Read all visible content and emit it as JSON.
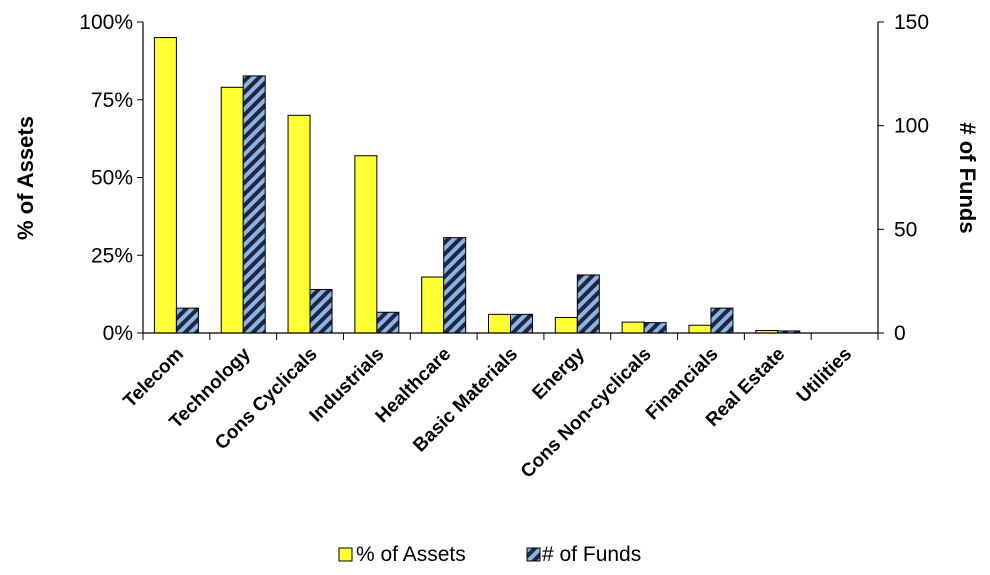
{
  "chart_data": {
    "type": "bar",
    "categories": [
      "Telecom",
      "Technology",
      "Cons Cyclicals",
      "Industrials",
      "Healthcare",
      "Basic Materials",
      "Energy",
      "Cons Non-cyclicals",
      "Financials",
      "Real Estate",
      "Utilities"
    ],
    "series": [
      {
        "name": "% of Assets",
        "axis": "left",
        "color": "#ffff33",
        "values": [
          95,
          79,
          70,
          57,
          18,
          6,
          5,
          3.5,
          2.5,
          0.8,
          0
        ]
      },
      {
        "name": "# of Funds",
        "axis": "right",
        "color": "#8db4e2",
        "pattern": "diagonal-stripes",
        "values": [
          12,
          124,
          21,
          10,
          46,
          9,
          28,
          5,
          12,
          1,
          0
        ]
      }
    ],
    "y_left": {
      "label": "% of Assets",
      "ylim": [
        0,
        100
      ],
      "ticks": [
        0,
        25,
        50,
        75,
        100
      ],
      "tick_labels": [
        "0%",
        "25%",
        "50%",
        "75%",
        "100%"
      ]
    },
    "y_right": {
      "label": "# of Funds",
      "ylim": [
        0,
        150
      ],
      "ticks": [
        0,
        50,
        100,
        150
      ],
      "tick_labels": [
        "0",
        "50",
        "100",
        "150"
      ]
    },
    "grid": false,
    "legend_position": "bottom"
  }
}
